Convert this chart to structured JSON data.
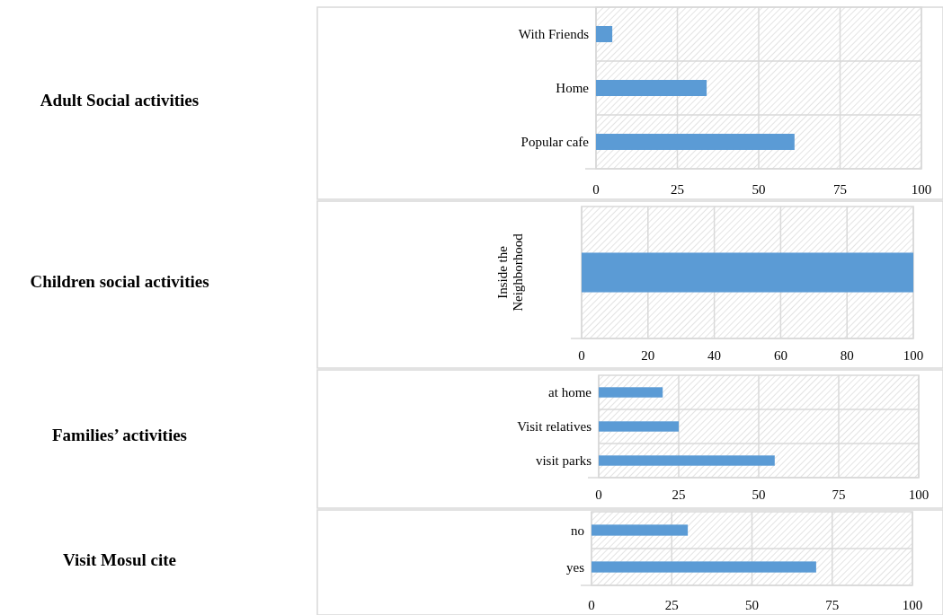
{
  "chart_data": [
    {
      "type": "bar",
      "orientation": "horizontal",
      "ylabel": "Adult Social activities",
      "categories": [
        "With Friends",
        "Home",
        "Popular cafe"
      ],
      "values": [
        5,
        34,
        61
      ],
      "color": "#5b9bd5",
      "xlim": [
        0,
        100
      ],
      "xticks": [
        0,
        25,
        50,
        75,
        100
      ],
      "grid": true
    },
    {
      "type": "bar",
      "orientation": "horizontal",
      "ylabel": "Children social activities",
      "categories": [
        "Inside the Neighborhood"
      ],
      "values": [
        100
      ],
      "color": "#5b9bd5",
      "xlim": [
        0,
        100
      ],
      "xticks": [
        0,
        20,
        40,
        60,
        80,
        100
      ],
      "grid": true
    },
    {
      "type": "bar",
      "orientation": "horizontal",
      "ylabel": "Families’ activities",
      "categories": [
        "at home",
        "Visit relatives",
        "visit parks"
      ],
      "values": [
        20,
        25,
        55
      ],
      "color": "#5b9bd5",
      "xlim": [
        0,
        100
      ],
      "xticks": [
        0,
        25,
        50,
        75,
        100
      ],
      "grid": true
    },
    {
      "type": "bar",
      "orientation": "horizontal",
      "ylabel": "Visit Mosul cite",
      "categories": [
        "no",
        "yes"
      ],
      "values": [
        30,
        70
      ],
      "color": "#5b9bd5",
      "xlim": [
        0,
        100
      ],
      "xticks": [
        0,
        25,
        50,
        75,
        100
      ],
      "grid": true
    }
  ]
}
